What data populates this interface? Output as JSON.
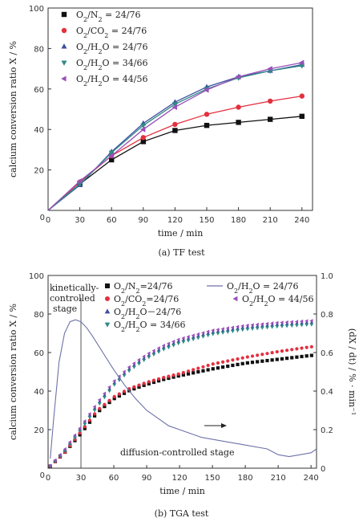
{
  "chart_data": [
    {
      "type": "line",
      "caption": "(a) TF  test",
      "xlabel": "time / min",
      "ylabel": "calcium  conversion  ratio  X / %",
      "xlim": [
        0,
        250
      ],
      "ylim": [
        0,
        100
      ],
      "xticks": [
        0,
        30,
        60,
        90,
        120,
        150,
        180,
        210,
        240
      ],
      "yticks": [
        20,
        40,
        60,
        80,
        100
      ],
      "x": [
        0,
        30,
        60,
        90,
        120,
        150,
        180,
        210,
        240
      ],
      "series": [
        {
          "name": "O2/N2 = 24/76",
          "color": "#111111",
          "marker": "square",
          "values": [
            0,
            13,
            25,
            34,
            39.5,
            42,
            43.5,
            45,
            46.5
          ]
        },
        {
          "name": "O2/CO2 = 24/76",
          "color": "#e3303f",
          "marker": "circle",
          "values": [
            0,
            14,
            27,
            36,
            42.5,
            47.5,
            51,
            54,
            56.5
          ]
        },
        {
          "name": "O2/H2O = 24/76",
          "color": "#3e4f9e",
          "marker": "triangle-up",
          "values": [
            0,
            12.5,
            29,
            43,
            53.5,
            61,
            66,
            69,
            72
          ]
        },
        {
          "name": "O2/H2O = 34/66",
          "color": "#2f8a86",
          "marker": "triangle-down",
          "values": [
            0,
            13,
            28.5,
            42,
            52.5,
            60,
            65.5,
            69,
            71.5
          ]
        },
        {
          "name": "O2/H2O = 44/56",
          "color": "#9a4fb8",
          "marker": "triangle-left",
          "values": [
            0,
            14.5,
            27,
            40,
            51,
            59.5,
            66,
            70,
            73
          ]
        }
      ]
    },
    {
      "type": "scatter",
      "caption": "(b) TGA  test",
      "xlabel": "time / min",
      "ylabel": "calcium  conversion  ratio  X / %",
      "y2label": "(dX / dt) / % · min⁻¹",
      "xlim": [
        0,
        245
      ],
      "ylim": [
        0,
        100
      ],
      "y2lim": [
        0,
        1.0
      ],
      "xticks": [
        0,
        30,
        60,
        90,
        120,
        150,
        180,
        210,
        240
      ],
      "yticks": [
        20,
        40,
        60,
        80,
        100
      ],
      "y2ticks": [
        0,
        0.2,
        0.4,
        0.6,
        0.8,
        1.0
      ],
      "annotations": {
        "kinetic_line1": "kinetically-",
        "kinetic_line2": "controlled",
        "kinetic_line3": "stage",
        "diffusion": "diffusion-controlled stage",
        "boundary_x": 30
      },
      "series": [
        {
          "name": "O2/N2=24/76",
          "color": "#111111",
          "marker": "square",
          "x": [
            0,
            15,
            30,
            45,
            60,
            75,
            90,
            105,
            120,
            150,
            180,
            210,
            240
          ],
          "values": [
            0,
            8,
            18,
            29,
            36,
            40.5,
            43.5,
            46,
            48,
            51.5,
            54.5,
            56.5,
            58.5
          ]
        },
        {
          "name": "O2/CO2=24/76",
          "color": "#e3303f",
          "marker": "circle",
          "x": [
            0,
            15,
            30,
            45,
            60,
            75,
            90,
            105,
            120,
            150,
            180,
            210,
            240
          ],
          "values": [
            0,
            8,
            19,
            30,
            37,
            41.5,
            44.5,
            47,
            49,
            54,
            57.5,
            60.5,
            63
          ]
        },
        {
          "name": "O2/H2O－24/76",
          "color": "#3e4f9e",
          "marker": "triangle-up",
          "x": [
            0,
            15,
            30,
            45,
            60,
            75,
            90,
            105,
            120,
            150,
            180,
            210,
            240
          ],
          "values": [
            0,
            9,
            21,
            33,
            44,
            52,
            58,
            62.5,
            66,
            70.5,
            73,
            74.5,
            75.5
          ]
        },
        {
          "name": "O2/H2O = 34/66",
          "color": "#2f8a86",
          "marker": "triangle-down",
          "x": [
            0,
            15,
            30,
            45,
            60,
            75,
            90,
            105,
            120,
            150,
            180,
            210,
            240
          ],
          "values": [
            0,
            8.5,
            20,
            32,
            43,
            51,
            57,
            61.5,
            65,
            69.5,
            72,
            73.5,
            74.5
          ]
        },
        {
          "name": "O2/H2O = 44/56",
          "color": "#9a4fb8",
          "marker": "triangle-left",
          "x": [
            0,
            15,
            30,
            45,
            60,
            75,
            90,
            105,
            120,
            150,
            180,
            210,
            240
          ],
          "values": [
            0,
            9.5,
            21.5,
            34,
            45,
            53,
            59,
            63.5,
            67,
            71.5,
            74,
            75.5,
            76.5
          ]
        },
        {
          "name": "O2/H2O = 24/76",
          "color": "#6d72a8",
          "marker": "line",
          "axis": "right",
          "x": [
            2,
            5,
            10,
            15,
            20,
            25,
            30,
            35,
            40,
            50,
            60,
            70,
            80,
            90,
            100,
            110,
            120,
            140,
            160,
            180,
            200,
            210,
            220,
            230,
            240,
            245
          ],
          "values": [
            0.05,
            0.25,
            0.55,
            0.7,
            0.76,
            0.77,
            0.76,
            0.73,
            0.69,
            0.6,
            0.51,
            0.43,
            0.36,
            0.3,
            0.26,
            0.22,
            0.2,
            0.16,
            0.14,
            0.12,
            0.1,
            0.07,
            0.06,
            0.07,
            0.08,
            0.1
          ]
        }
      ]
    }
  ]
}
